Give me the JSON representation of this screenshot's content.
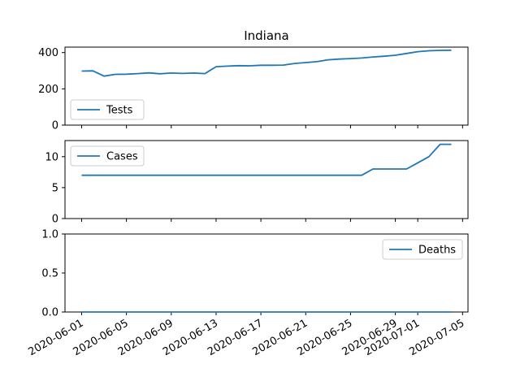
{
  "chart_data": {
    "type": "line",
    "title": "Indiana",
    "x_dates": [
      "2020-06-01",
      "2020-06-02",
      "2020-06-03",
      "2020-06-04",
      "2020-06-05",
      "2020-06-06",
      "2020-06-07",
      "2020-06-08",
      "2020-06-09",
      "2020-06-10",
      "2020-06-11",
      "2020-06-12",
      "2020-06-13",
      "2020-06-14",
      "2020-06-15",
      "2020-06-16",
      "2020-06-17",
      "2020-06-18",
      "2020-06-19",
      "2020-06-20",
      "2020-06-21",
      "2020-06-22",
      "2020-06-23",
      "2020-06-24",
      "2020-06-25",
      "2020-06-26",
      "2020-06-27",
      "2020-06-28",
      "2020-06-29",
      "2020-06-30",
      "2020-07-01",
      "2020-07-02",
      "2020-07-03",
      "2020-07-04"
    ],
    "x_tick_labels": [
      "2020-06-01",
      "2020-06-05",
      "2020-06-09",
      "2020-06-13",
      "2020-06-17",
      "2020-06-21",
      "2020-06-25",
      "2020-06-29",
      "2020-07-01",
      "2020-07-05"
    ],
    "x_tick_dates": [
      "2020-06-01",
      "2020-06-05",
      "2020-06-09",
      "2020-06-13",
      "2020-06-17",
      "2020-06-21",
      "2020-06-25",
      "2020-06-29",
      "2020-07-01",
      "2020-07-05"
    ],
    "subplots": [
      {
        "series_name": "Tests",
        "legend_position": "lower-left",
        "ylim": [
          0,
          430
        ],
        "y_ticks": [
          0,
          200,
          400
        ],
        "y_tick_labels": [
          "0",
          "200",
          "400"
        ],
        "values": [
          298,
          299,
          270,
          280,
          281,
          284,
          288,
          283,
          287,
          285,
          287,
          284,
          322,
          325,
          328,
          327,
          330,
          330,
          331,
          340,
          345,
          350,
          360,
          364,
          367,
          370,
          376,
          380,
          385,
          395,
          405,
          410,
          412,
          413
        ]
      },
      {
        "series_name": "Cases",
        "legend_position": "upper-left",
        "ylim": [
          0,
          12.6
        ],
        "y_ticks": [
          0,
          5,
          10
        ],
        "y_tick_labels": [
          "0",
          "5",
          "10"
        ],
        "values": [
          7,
          7,
          7,
          7,
          7,
          7,
          7,
          7,
          7,
          7,
          7,
          7,
          7,
          7,
          7,
          7,
          7,
          7,
          7,
          7,
          7,
          7,
          7,
          7,
          7,
          7,
          8,
          8,
          8,
          8,
          9,
          10,
          12,
          12
        ]
      },
      {
        "series_name": "Deaths",
        "legend_position": "upper-right",
        "ylim": [
          0,
          1.0
        ],
        "y_ticks": [
          0.0,
          0.5,
          1.0
        ],
        "y_tick_labels": [
          "0.0",
          "0.5",
          "1.0"
        ],
        "values": [
          0,
          0,
          0,
          0,
          0,
          0,
          0,
          0,
          0,
          0,
          0,
          0,
          0,
          0,
          0,
          0,
          0,
          0,
          0,
          0,
          0,
          0,
          0,
          0,
          0,
          0,
          0,
          0,
          0,
          0,
          0,
          0,
          0,
          0
        ]
      }
    ]
  }
}
